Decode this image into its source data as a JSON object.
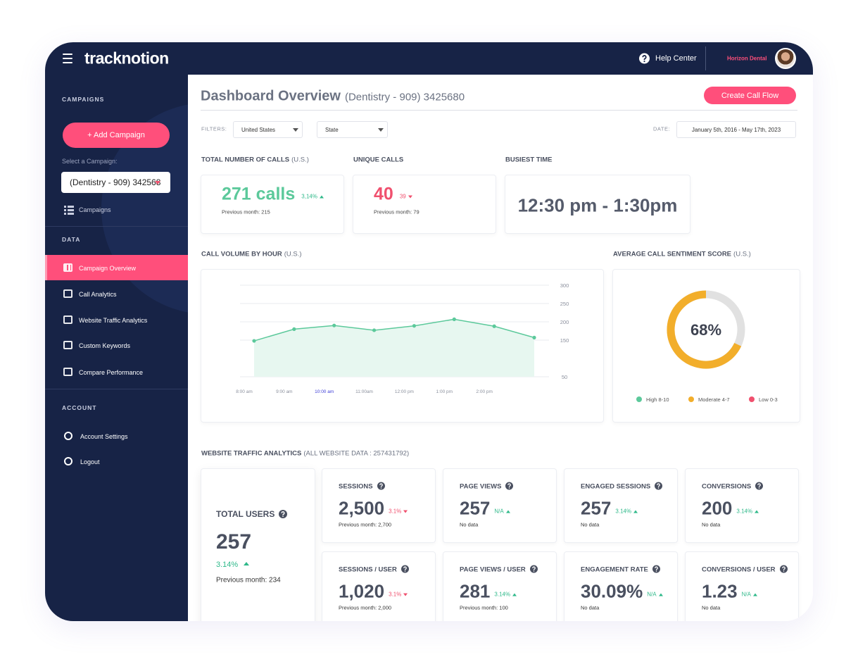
{
  "header": {
    "logo": "tracknotion",
    "help": "Help Center",
    "account": "Horizon Dental"
  },
  "sidebar": {
    "campaigns_heading": "CAMPAIGNS",
    "add_campaign": "+ Add Campaign",
    "select_label": "Select a Campaign:",
    "selected_campaign": "(Dentistry - 909) 342568",
    "campaigns_link": "Campaigns",
    "data_heading": "DATA",
    "data_items": [
      {
        "label": "Campaign Overview",
        "active": true
      },
      {
        "label": "Call Analytics",
        "active": false
      },
      {
        "label": "Website Traffic Analytics",
        "active": false
      },
      {
        "label": "Custom Keywords",
        "active": false
      },
      {
        "label": "Compare Performance",
        "active": false
      }
    ],
    "account_heading": "ACCOUNT",
    "account_items": [
      "Account Settings",
      "Logout"
    ]
  },
  "main": {
    "title": "Dashboard Overview",
    "subtitle": "(Dentistry - 909) 3425680",
    "create_button": "Create Call Flow",
    "filters_label": "FILTERS:",
    "filters": [
      "United States",
      "State"
    ],
    "date_label": "DATE:",
    "date_range": "January 5th, 2016 - May 17th, 2023",
    "kpis": [
      {
        "label": "TOTAL NUMBER OF CALLS",
        "scope": "(U.S.)",
        "value": "271 calls",
        "change": "3,14%",
        "trend": "up",
        "previous": "Previous month: 215"
      },
      {
        "label": "UNIQUE CALLS",
        "value": "40",
        "change": "39",
        "trend": "down",
        "previous": "Previous month: 79"
      },
      {
        "label": "BUSIEST TIME",
        "value": "12:30 pm - 1:30pm"
      }
    ],
    "traffic": {
      "label": "WEBSITE TRAFFIC ANALYTICS",
      "scope": "(ALL WEBSITE DATA : 257431792)",
      "total_users": {
        "label": "TOTAL USERS",
        "value": "257",
        "change": "3.14%",
        "trend": "up",
        "previous": "Previous month: 234"
      },
      "metrics": [
        {
          "label": "SESSIONS",
          "value": "2,500",
          "change": "3.1%",
          "trend": "down",
          "previous": "Previous month: 2,700"
        },
        {
          "label": "PAGE VIEWS",
          "value": "257",
          "change": "N/A",
          "trend": "up",
          "previous": "No data"
        },
        {
          "label": "ENGAGED SESSIONS",
          "value": "257",
          "change": "3.14%",
          "trend": "up",
          "previous": "No data"
        },
        {
          "label": "CONVERSIONS",
          "value": "200",
          "change": "3.14%",
          "trend": "up",
          "previous": "No data"
        },
        {
          "label": "SESSIONS / USER",
          "value": "1,020",
          "change": "3.1%",
          "trend": "down",
          "previous": "Previous month: 2,000"
        },
        {
          "label": "PAGE VIEWS / USER",
          "value": "281",
          "change": "3.14%",
          "trend": "up",
          "previous": "Previous month: 100"
        },
        {
          "label": "ENGAGEMENT RATE",
          "value": "30.09%",
          "change": "N/A",
          "trend": "up",
          "previous": "No data"
        },
        {
          "label": "CONVERSIONS / USER",
          "value": "1.23",
          "change": "N/A",
          "trend": "up",
          "previous": "No data"
        }
      ]
    }
  },
  "chart_data": [
    {
      "type": "line",
      "title": "CALL VOLUME BY HOUR",
      "subtitle": "(U.S.)",
      "categories": [
        "8:00 am",
        "9:00 am",
        "10:00 am",
        "11:00am",
        "12:00 pm",
        "1:00 pm",
        "2:00 pm",
        null
      ],
      "category_colors": [
        "#8a8f9c",
        "#8a8f9c",
        "#3b3bd6",
        "#8a8f9c",
        "#8a8f9c",
        "#8a8f9c",
        "#8a8f9c",
        null
      ],
      "values": [
        148,
        180,
        190,
        177,
        189,
        207,
        188,
        157
      ],
      "color": "#5cc99b",
      "area_color": "#e7f7f0",
      "ylim": [
        50,
        300
      ],
      "yticks": [
        50,
        150,
        200,
        250,
        300
      ],
      "grid": true
    },
    {
      "type": "pie",
      "title": "AVERAGE CALL SENTIMENT SCORE",
      "subtitle": "(U.S.)",
      "values": [
        68
      ],
      "value_labels": [
        "68%"
      ],
      "color": "#f2ae2b",
      "rest_color": "#e1e1e1",
      "legend": [
        {
          "name": "High 8-10",
          "color": "#5cc99b"
        },
        {
          "name": "Moderate 4-7",
          "color": "#f2ae2b"
        },
        {
          "name": "Low 0-3",
          "color": "#f0506e"
        }
      ]
    }
  ]
}
